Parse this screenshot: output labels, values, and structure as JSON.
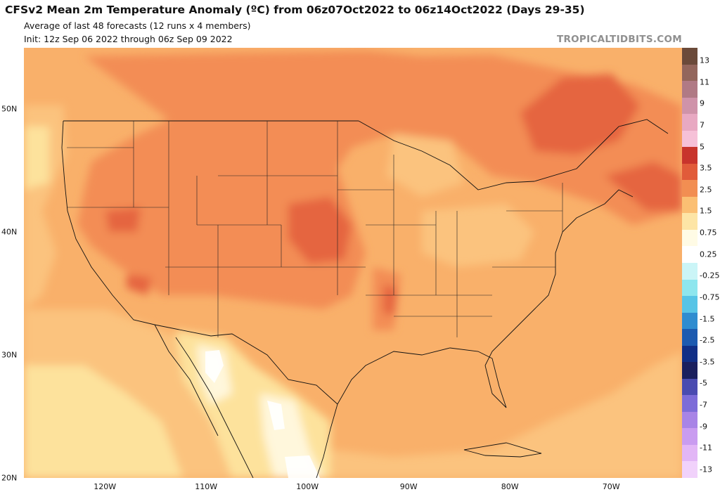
{
  "header": {
    "title": "CFSv2 Mean 2m Temperature Anomaly (ºC) from 06z07Oct2022 to 06z14Oct2022 (Days 29-35)",
    "subtitle": "Average of last 48 forecasts (12 runs x 4 members)",
    "init": "Init: 12z Sep 06 2022 through 06z Sep 09 2022",
    "watermark": "TROPICALTIDBITS.COM"
  },
  "map": {
    "lon_range": [
      -128,
      -63
    ],
    "lat_range": [
      20,
      55
    ],
    "lat_labels": [
      {
        "text": "50N",
        "lat": 50
      },
      {
        "text": "40N",
        "lat": 40
      },
      {
        "text": "30N",
        "lat": 30
      },
      {
        "text": "20N",
        "lat": 20
      }
    ],
    "lon_labels": [
      {
        "text": "120W",
        "lon": -120
      },
      {
        "text": "110W",
        "lon": -110
      },
      {
        "text": "100W",
        "lon": -100
      },
      {
        "text": "90W",
        "lon": -90
      },
      {
        "text": "80W",
        "lon": -80
      },
      {
        "text": "70W",
        "lon": -70
      }
    ]
  },
  "colorbar": {
    "labels": [
      "13",
      "11",
      "9",
      "7",
      "5",
      "3.5",
      "2.5",
      "1.5",
      "0.75",
      "0.25",
      "-0.25",
      "-0.75",
      "-1.5",
      "-2.5",
      "-3.5",
      "-5",
      "-7",
      "-9",
      "-11",
      "-13"
    ],
    "colors": [
      "#6b4a3a",
      "#93665c",
      "#b07a85",
      "#cf93a9",
      "#e8a9c2",
      "#f6c1d8",
      "#c8342c",
      "#e15b3a",
      "#f28e52",
      "#fbbf73",
      "#fde5a6",
      "#fffbe5",
      "#ffffff",
      "#cbf5f7",
      "#8ee6ee",
      "#57c4e6",
      "#2f8cd0",
      "#1c5ab0",
      "#102e86",
      "#1a1f5e",
      "#4a4bb0",
      "#7d6cd8",
      "#a884e6",
      "#c99cf0",
      "#e2b6f6",
      "#f1d2fb"
    ]
  }
}
